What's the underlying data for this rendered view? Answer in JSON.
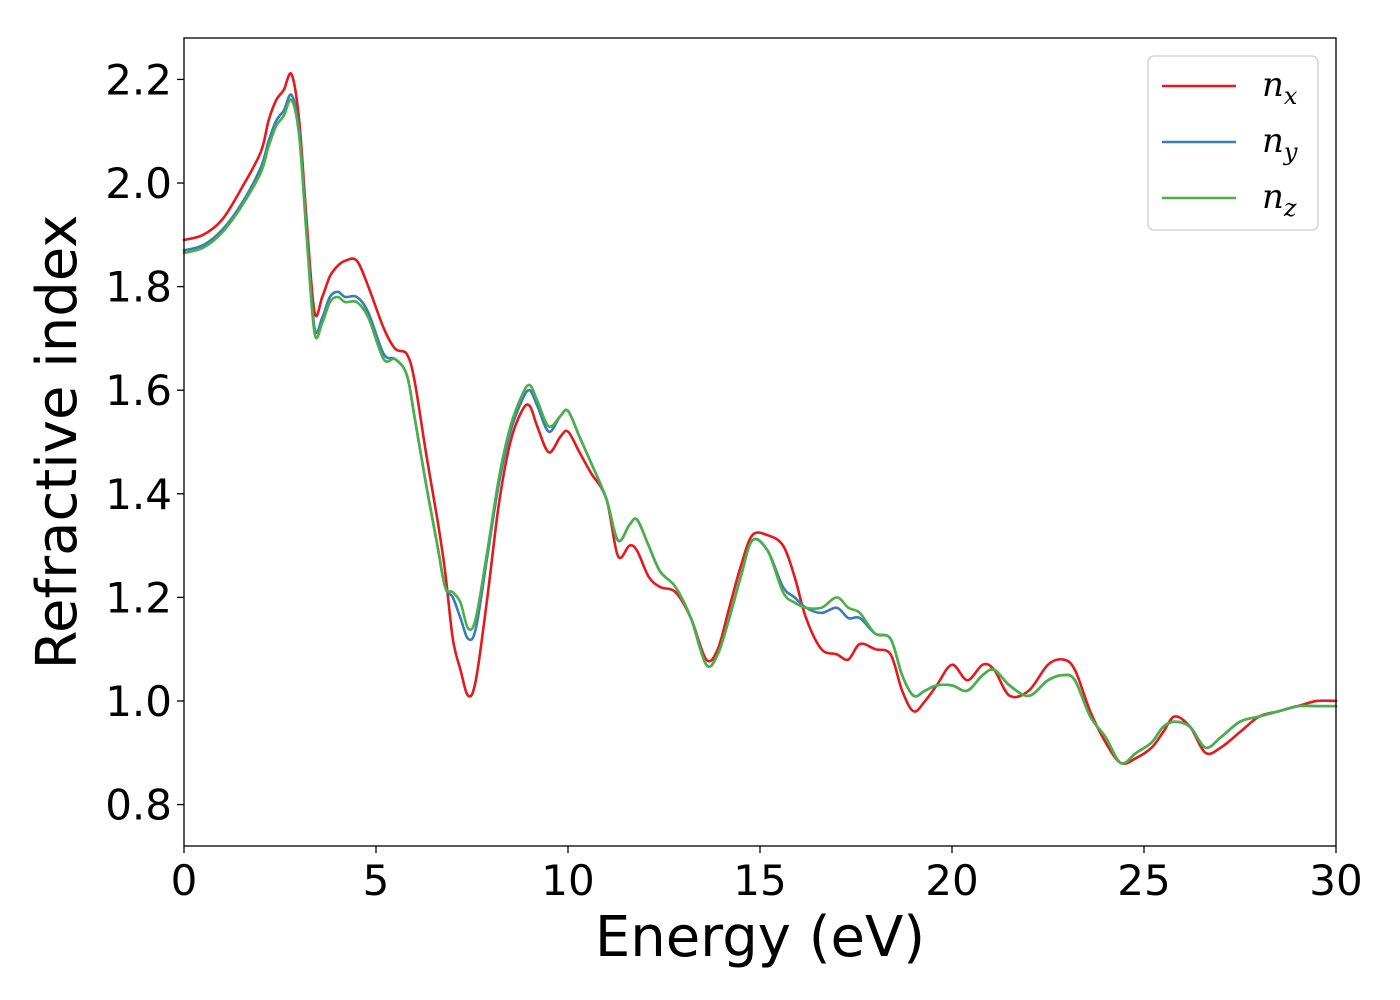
{
  "chart_data": {
    "type": "line",
    "title": "",
    "xlabel": "Energy (eV)",
    "ylabel": "Refractive index",
    "xlim": [
      0,
      30
    ],
    "ylim": [
      0.72,
      2.28
    ],
    "xticks": [
      0,
      5,
      10,
      15,
      20,
      25,
      30
    ],
    "yticks": [
      0.8,
      1.0,
      1.2,
      1.4,
      1.6,
      1.8,
      2.0,
      2.2
    ],
    "xtick_labels": [
      "0",
      "5",
      "10",
      "15",
      "20",
      "25",
      "30"
    ],
    "ytick_labels": [
      "0.8",
      "1.0",
      "1.2",
      "1.4",
      "1.6",
      "1.8",
      "2.0",
      "2.2"
    ],
    "grid": false,
    "legend_position": "top-right",
    "series": [
      {
        "name": "n_x",
        "legend_main": "n",
        "legend_sub": "x",
        "color": "#e41a1c",
        "points": [
          [
            0,
            1.89
          ],
          [
            0.5,
            1.9
          ],
          [
            1.0,
            1.93
          ],
          [
            1.5,
            1.99
          ],
          [
            2.0,
            2.06
          ],
          [
            2.2,
            2.12
          ],
          [
            2.4,
            2.16
          ],
          [
            2.6,
            2.18
          ],
          [
            2.8,
            2.21
          ],
          [
            3.0,
            2.12
          ],
          [
            3.2,
            1.92
          ],
          [
            3.4,
            1.75
          ],
          [
            3.6,
            1.78
          ],
          [
            3.8,
            1.82
          ],
          [
            4.0,
            1.84
          ],
          [
            4.2,
            1.85
          ],
          [
            4.5,
            1.85
          ],
          [
            4.8,
            1.8
          ],
          [
            5.2,
            1.72
          ],
          [
            5.5,
            1.68
          ],
          [
            5.8,
            1.67
          ],
          [
            6.0,
            1.62
          ],
          [
            6.3,
            1.48
          ],
          [
            6.6,
            1.35
          ],
          [
            6.8,
            1.25
          ],
          [
            7.0,
            1.12
          ],
          [
            7.2,
            1.06
          ],
          [
            7.4,
            1.01
          ],
          [
            7.6,
            1.04
          ],
          [
            7.9,
            1.2
          ],
          [
            8.2,
            1.38
          ],
          [
            8.5,
            1.5
          ],
          [
            8.8,
            1.56
          ],
          [
            9.0,
            1.57
          ],
          [
            9.2,
            1.53
          ],
          [
            9.5,
            1.48
          ],
          [
            9.8,
            1.51
          ],
          [
            10.0,
            1.52
          ],
          [
            10.3,
            1.48
          ],
          [
            10.6,
            1.44
          ],
          [
            11.0,
            1.39
          ],
          [
            11.3,
            1.28
          ],
          [
            11.6,
            1.3
          ],
          [
            11.8,
            1.29
          ],
          [
            12.1,
            1.24
          ],
          [
            12.4,
            1.22
          ],
          [
            12.8,
            1.21
          ],
          [
            13.2,
            1.16
          ],
          [
            13.6,
            1.08
          ],
          [
            13.9,
            1.1
          ],
          [
            14.2,
            1.18
          ],
          [
            14.5,
            1.26
          ],
          [
            14.8,
            1.32
          ],
          [
            15.2,
            1.32
          ],
          [
            15.6,
            1.3
          ],
          [
            15.9,
            1.24
          ],
          [
            16.2,
            1.16
          ],
          [
            16.6,
            1.1
          ],
          [
            17.0,
            1.09
          ],
          [
            17.3,
            1.08
          ],
          [
            17.6,
            1.11
          ],
          [
            18.0,
            1.1
          ],
          [
            18.4,
            1.09
          ],
          [
            18.7,
            1.02
          ],
          [
            19.0,
            0.98
          ],
          [
            19.3,
            1.0
          ],
          [
            19.6,
            1.03
          ],
          [
            20.0,
            1.07
          ],
          [
            20.4,
            1.04
          ],
          [
            20.8,
            1.07
          ],
          [
            21.1,
            1.06
          ],
          [
            21.5,
            1.01
          ],
          [
            22.0,
            1.02
          ],
          [
            22.5,
            1.07
          ],
          [
            22.9,
            1.08
          ],
          [
            23.2,
            1.06
          ],
          [
            23.6,
            0.98
          ],
          [
            24.0,
            0.92
          ],
          [
            24.4,
            0.88
          ],
          [
            24.8,
            0.89
          ],
          [
            25.2,
            0.91
          ],
          [
            25.5,
            0.94
          ],
          [
            25.8,
            0.97
          ],
          [
            26.2,
            0.95
          ],
          [
            26.6,
            0.9
          ],
          [
            27.0,
            0.91
          ],
          [
            27.5,
            0.94
          ],
          [
            28.0,
            0.97
          ],
          [
            28.5,
            0.98
          ],
          [
            29.0,
            0.99
          ],
          [
            29.5,
            1.0
          ],
          [
            30.0,
            1.0
          ]
        ]
      },
      {
        "name": "n_y",
        "legend_main": "n",
        "legend_sub": "y",
        "color": "#377eb8",
        "points": [
          [
            0,
            1.87
          ],
          [
            0.5,
            1.88
          ],
          [
            1.0,
            1.91
          ],
          [
            1.5,
            1.96
          ],
          [
            2.0,
            2.03
          ],
          [
            2.2,
            2.08
          ],
          [
            2.4,
            2.12
          ],
          [
            2.6,
            2.14
          ],
          [
            2.8,
            2.17
          ],
          [
            3.0,
            2.1
          ],
          [
            3.2,
            1.9
          ],
          [
            3.4,
            1.72
          ],
          [
            3.6,
            1.74
          ],
          [
            3.8,
            1.78
          ],
          [
            4.0,
            1.79
          ],
          [
            4.2,
            1.78
          ],
          [
            4.5,
            1.78
          ],
          [
            4.8,
            1.75
          ],
          [
            5.2,
            1.67
          ],
          [
            5.5,
            1.66
          ],
          [
            5.8,
            1.63
          ],
          [
            6.0,
            1.55
          ],
          [
            6.3,
            1.42
          ],
          [
            6.6,
            1.3
          ],
          [
            6.8,
            1.22
          ],
          [
            7.0,
            1.2
          ],
          [
            7.2,
            1.16
          ],
          [
            7.4,
            1.12
          ],
          [
            7.6,
            1.14
          ],
          [
            7.9,
            1.28
          ],
          [
            8.2,
            1.42
          ],
          [
            8.5,
            1.52
          ],
          [
            8.8,
            1.58
          ],
          [
            9.0,
            1.6
          ],
          [
            9.2,
            1.57
          ],
          [
            9.5,
            1.52
          ],
          [
            9.8,
            1.55
          ],
          [
            10.0,
            1.56
          ],
          [
            10.3,
            1.51
          ],
          [
            10.6,
            1.46
          ],
          [
            11.0,
            1.39
          ],
          [
            11.3,
            1.31
          ],
          [
            11.6,
            1.34
          ],
          [
            11.8,
            1.35
          ],
          [
            12.1,
            1.3
          ],
          [
            12.4,
            1.25
          ],
          [
            12.8,
            1.22
          ],
          [
            13.2,
            1.16
          ],
          [
            13.6,
            1.07
          ],
          [
            13.9,
            1.09
          ],
          [
            14.2,
            1.16
          ],
          [
            14.5,
            1.24
          ],
          [
            14.8,
            1.31
          ],
          [
            15.2,
            1.29
          ],
          [
            15.6,
            1.22
          ],
          [
            15.9,
            1.2
          ],
          [
            16.2,
            1.18
          ],
          [
            16.6,
            1.17
          ],
          [
            17.0,
            1.18
          ],
          [
            17.3,
            1.16
          ],
          [
            17.6,
            1.16
          ],
          [
            18.0,
            1.13
          ],
          [
            18.4,
            1.12
          ],
          [
            18.7,
            1.05
          ],
          [
            19.0,
            1.01
          ],
          [
            19.3,
            1.02
          ],
          [
            19.6,
            1.03
          ],
          [
            20.0,
            1.03
          ],
          [
            20.4,
            1.02
          ],
          [
            20.8,
            1.05
          ],
          [
            21.1,
            1.06
          ],
          [
            21.5,
            1.03
          ],
          [
            22.0,
            1.01
          ],
          [
            22.5,
            1.04
          ],
          [
            22.9,
            1.05
          ],
          [
            23.2,
            1.04
          ],
          [
            23.6,
            0.97
          ],
          [
            24.0,
            0.93
          ],
          [
            24.4,
            0.88
          ],
          [
            24.8,
            0.9
          ],
          [
            25.2,
            0.92
          ],
          [
            25.5,
            0.95
          ],
          [
            25.8,
            0.96
          ],
          [
            26.2,
            0.95
          ],
          [
            26.6,
            0.91
          ],
          [
            27.0,
            0.93
          ],
          [
            27.5,
            0.96
          ],
          [
            28.0,
            0.97
          ],
          [
            28.5,
            0.98
          ],
          [
            29.0,
            0.99
          ],
          [
            29.5,
            0.99
          ],
          [
            30.0,
            0.99
          ]
        ]
      },
      {
        "name": "n_z",
        "legend_main": "n",
        "legend_sub": "z",
        "color": "#4daf4a",
        "points": [
          [
            0,
            1.865
          ],
          [
            0.5,
            1.875
          ],
          [
            1.0,
            1.905
          ],
          [
            1.5,
            1.955
          ],
          [
            2.0,
            2.02
          ],
          [
            2.2,
            2.07
          ],
          [
            2.4,
            2.11
          ],
          [
            2.6,
            2.13
          ],
          [
            2.8,
            2.16
          ],
          [
            3.0,
            2.09
          ],
          [
            3.2,
            1.89
          ],
          [
            3.4,
            1.71
          ],
          [
            3.6,
            1.73
          ],
          [
            3.8,
            1.77
          ],
          [
            4.0,
            1.78
          ],
          [
            4.2,
            1.77
          ],
          [
            4.5,
            1.77
          ],
          [
            4.8,
            1.74
          ],
          [
            5.2,
            1.66
          ],
          [
            5.5,
            1.66
          ],
          [
            5.8,
            1.63
          ],
          [
            6.0,
            1.55
          ],
          [
            6.3,
            1.42
          ],
          [
            6.6,
            1.3
          ],
          [
            6.8,
            1.22
          ],
          [
            7.0,
            1.21
          ],
          [
            7.2,
            1.19
          ],
          [
            7.4,
            1.14
          ],
          [
            7.6,
            1.16
          ],
          [
            7.9,
            1.29
          ],
          [
            8.2,
            1.43
          ],
          [
            8.5,
            1.53
          ],
          [
            8.8,
            1.59
          ],
          [
            9.0,
            1.61
          ],
          [
            9.2,
            1.58
          ],
          [
            9.5,
            1.53
          ],
          [
            9.8,
            1.55
          ],
          [
            10.0,
            1.56
          ],
          [
            10.3,
            1.51
          ],
          [
            10.6,
            1.46
          ],
          [
            11.0,
            1.39
          ],
          [
            11.3,
            1.31
          ],
          [
            11.6,
            1.34
          ],
          [
            11.8,
            1.35
          ],
          [
            12.1,
            1.3
          ],
          [
            12.4,
            1.25
          ],
          [
            12.8,
            1.22
          ],
          [
            13.2,
            1.16
          ],
          [
            13.6,
            1.07
          ],
          [
            13.9,
            1.09
          ],
          [
            14.2,
            1.16
          ],
          [
            14.5,
            1.24
          ],
          [
            14.8,
            1.31
          ],
          [
            15.2,
            1.29
          ],
          [
            15.6,
            1.21
          ],
          [
            15.9,
            1.19
          ],
          [
            16.2,
            1.18
          ],
          [
            16.6,
            1.18
          ],
          [
            17.0,
            1.2
          ],
          [
            17.3,
            1.18
          ],
          [
            17.6,
            1.17
          ],
          [
            18.0,
            1.13
          ],
          [
            18.4,
            1.12
          ],
          [
            18.7,
            1.05
          ],
          [
            19.0,
            1.01
          ],
          [
            19.3,
            1.02
          ],
          [
            19.6,
            1.03
          ],
          [
            20.0,
            1.03
          ],
          [
            20.4,
            1.02
          ],
          [
            20.8,
            1.05
          ],
          [
            21.1,
            1.06
          ],
          [
            21.5,
            1.03
          ],
          [
            22.0,
            1.01
          ],
          [
            22.5,
            1.04
          ],
          [
            22.9,
            1.05
          ],
          [
            23.2,
            1.04
          ],
          [
            23.6,
            0.97
          ],
          [
            24.0,
            0.93
          ],
          [
            24.4,
            0.88
          ],
          [
            24.8,
            0.9
          ],
          [
            25.2,
            0.92
          ],
          [
            25.5,
            0.95
          ],
          [
            25.8,
            0.96
          ],
          [
            26.2,
            0.95
          ],
          [
            26.6,
            0.91
          ],
          [
            27.0,
            0.93
          ],
          [
            27.5,
            0.96
          ],
          [
            28.0,
            0.97
          ],
          [
            28.5,
            0.98
          ],
          [
            29.0,
            0.99
          ],
          [
            29.5,
            0.99
          ],
          [
            30.0,
            0.99
          ]
        ]
      }
    ]
  }
}
